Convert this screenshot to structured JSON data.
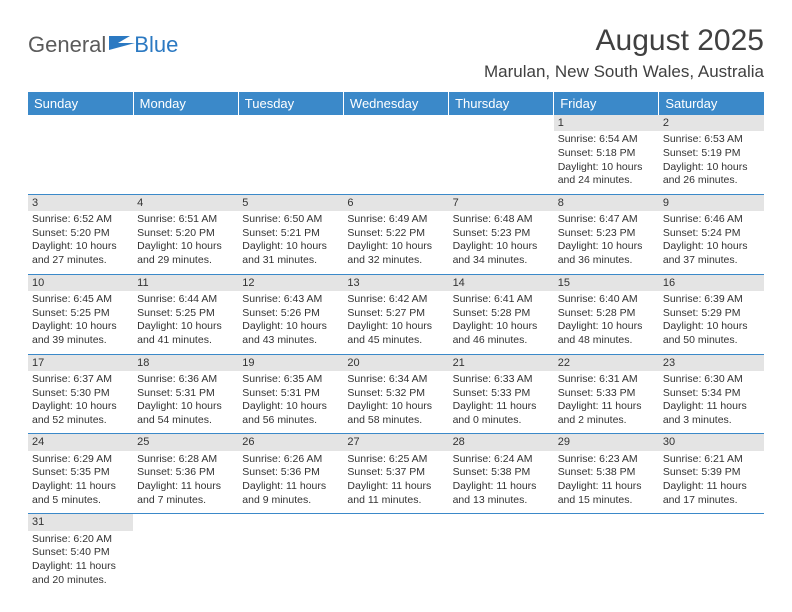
{
  "brand": {
    "general": "General",
    "blue": "Blue"
  },
  "title": "August 2025",
  "location": "Marulan, New South Wales, Australia",
  "colors": {
    "header_bg": "#3b89c9",
    "header_text": "#ffffff",
    "daynum_bg": "#e4e4e4",
    "row_border": "#3b89c9",
    "text": "#333333",
    "logo_gray": "#5b5b5b",
    "logo_blue": "#2b79c2"
  },
  "weekdays": [
    "Sunday",
    "Monday",
    "Tuesday",
    "Wednesday",
    "Thursday",
    "Friday",
    "Saturday"
  ],
  "weeks": [
    [
      {
        "n": "",
        "empty": true
      },
      {
        "n": "",
        "empty": true
      },
      {
        "n": "",
        "empty": true
      },
      {
        "n": "",
        "empty": true
      },
      {
        "n": "",
        "empty": true
      },
      {
        "n": "1",
        "sunrise": "Sunrise: 6:54 AM",
        "sunset": "Sunset: 5:18 PM",
        "daylight": "Daylight: 10 hours and 24 minutes."
      },
      {
        "n": "2",
        "sunrise": "Sunrise: 6:53 AM",
        "sunset": "Sunset: 5:19 PM",
        "daylight": "Daylight: 10 hours and 26 minutes."
      }
    ],
    [
      {
        "n": "3",
        "sunrise": "Sunrise: 6:52 AM",
        "sunset": "Sunset: 5:20 PM",
        "daylight": "Daylight: 10 hours and 27 minutes."
      },
      {
        "n": "4",
        "sunrise": "Sunrise: 6:51 AM",
        "sunset": "Sunset: 5:20 PM",
        "daylight": "Daylight: 10 hours and 29 minutes."
      },
      {
        "n": "5",
        "sunrise": "Sunrise: 6:50 AM",
        "sunset": "Sunset: 5:21 PM",
        "daylight": "Daylight: 10 hours and 31 minutes."
      },
      {
        "n": "6",
        "sunrise": "Sunrise: 6:49 AM",
        "sunset": "Sunset: 5:22 PM",
        "daylight": "Daylight: 10 hours and 32 minutes."
      },
      {
        "n": "7",
        "sunrise": "Sunrise: 6:48 AM",
        "sunset": "Sunset: 5:23 PM",
        "daylight": "Daylight: 10 hours and 34 minutes."
      },
      {
        "n": "8",
        "sunrise": "Sunrise: 6:47 AM",
        "sunset": "Sunset: 5:23 PM",
        "daylight": "Daylight: 10 hours and 36 minutes."
      },
      {
        "n": "9",
        "sunrise": "Sunrise: 6:46 AM",
        "sunset": "Sunset: 5:24 PM",
        "daylight": "Daylight: 10 hours and 37 minutes."
      }
    ],
    [
      {
        "n": "10",
        "sunrise": "Sunrise: 6:45 AM",
        "sunset": "Sunset: 5:25 PM",
        "daylight": "Daylight: 10 hours and 39 minutes."
      },
      {
        "n": "11",
        "sunrise": "Sunrise: 6:44 AM",
        "sunset": "Sunset: 5:25 PM",
        "daylight": "Daylight: 10 hours and 41 minutes."
      },
      {
        "n": "12",
        "sunrise": "Sunrise: 6:43 AM",
        "sunset": "Sunset: 5:26 PM",
        "daylight": "Daylight: 10 hours and 43 minutes."
      },
      {
        "n": "13",
        "sunrise": "Sunrise: 6:42 AM",
        "sunset": "Sunset: 5:27 PM",
        "daylight": "Daylight: 10 hours and 45 minutes."
      },
      {
        "n": "14",
        "sunrise": "Sunrise: 6:41 AM",
        "sunset": "Sunset: 5:28 PM",
        "daylight": "Daylight: 10 hours and 46 minutes."
      },
      {
        "n": "15",
        "sunrise": "Sunrise: 6:40 AM",
        "sunset": "Sunset: 5:28 PM",
        "daylight": "Daylight: 10 hours and 48 minutes."
      },
      {
        "n": "16",
        "sunrise": "Sunrise: 6:39 AM",
        "sunset": "Sunset: 5:29 PM",
        "daylight": "Daylight: 10 hours and 50 minutes."
      }
    ],
    [
      {
        "n": "17",
        "sunrise": "Sunrise: 6:37 AM",
        "sunset": "Sunset: 5:30 PM",
        "daylight": "Daylight: 10 hours and 52 minutes."
      },
      {
        "n": "18",
        "sunrise": "Sunrise: 6:36 AM",
        "sunset": "Sunset: 5:31 PM",
        "daylight": "Daylight: 10 hours and 54 minutes."
      },
      {
        "n": "19",
        "sunrise": "Sunrise: 6:35 AM",
        "sunset": "Sunset: 5:31 PM",
        "daylight": "Daylight: 10 hours and 56 minutes."
      },
      {
        "n": "20",
        "sunrise": "Sunrise: 6:34 AM",
        "sunset": "Sunset: 5:32 PM",
        "daylight": "Daylight: 10 hours and 58 minutes."
      },
      {
        "n": "21",
        "sunrise": "Sunrise: 6:33 AM",
        "sunset": "Sunset: 5:33 PM",
        "daylight": "Daylight: 11 hours and 0 minutes."
      },
      {
        "n": "22",
        "sunrise": "Sunrise: 6:31 AM",
        "sunset": "Sunset: 5:33 PM",
        "daylight": "Daylight: 11 hours and 2 minutes."
      },
      {
        "n": "23",
        "sunrise": "Sunrise: 6:30 AM",
        "sunset": "Sunset: 5:34 PM",
        "daylight": "Daylight: 11 hours and 3 minutes."
      }
    ],
    [
      {
        "n": "24",
        "sunrise": "Sunrise: 6:29 AM",
        "sunset": "Sunset: 5:35 PM",
        "daylight": "Daylight: 11 hours and 5 minutes."
      },
      {
        "n": "25",
        "sunrise": "Sunrise: 6:28 AM",
        "sunset": "Sunset: 5:36 PM",
        "daylight": "Daylight: 11 hours and 7 minutes."
      },
      {
        "n": "26",
        "sunrise": "Sunrise: 6:26 AM",
        "sunset": "Sunset: 5:36 PM",
        "daylight": "Daylight: 11 hours and 9 minutes."
      },
      {
        "n": "27",
        "sunrise": "Sunrise: 6:25 AM",
        "sunset": "Sunset: 5:37 PM",
        "daylight": "Daylight: 11 hours and 11 minutes."
      },
      {
        "n": "28",
        "sunrise": "Sunrise: 6:24 AM",
        "sunset": "Sunset: 5:38 PM",
        "daylight": "Daylight: 11 hours and 13 minutes."
      },
      {
        "n": "29",
        "sunrise": "Sunrise: 6:23 AM",
        "sunset": "Sunset: 5:38 PM",
        "daylight": "Daylight: 11 hours and 15 minutes."
      },
      {
        "n": "30",
        "sunrise": "Sunrise: 6:21 AM",
        "sunset": "Sunset: 5:39 PM",
        "daylight": "Daylight: 11 hours and 17 minutes."
      }
    ],
    [
      {
        "n": "31",
        "sunrise": "Sunrise: 6:20 AM",
        "sunset": "Sunset: 5:40 PM",
        "daylight": "Daylight: 11 hours and 20 minutes."
      },
      {
        "n": "",
        "empty": true
      },
      {
        "n": "",
        "empty": true
      },
      {
        "n": "",
        "empty": true
      },
      {
        "n": "",
        "empty": true
      },
      {
        "n": "",
        "empty": true
      },
      {
        "n": "",
        "empty": true
      }
    ]
  ]
}
